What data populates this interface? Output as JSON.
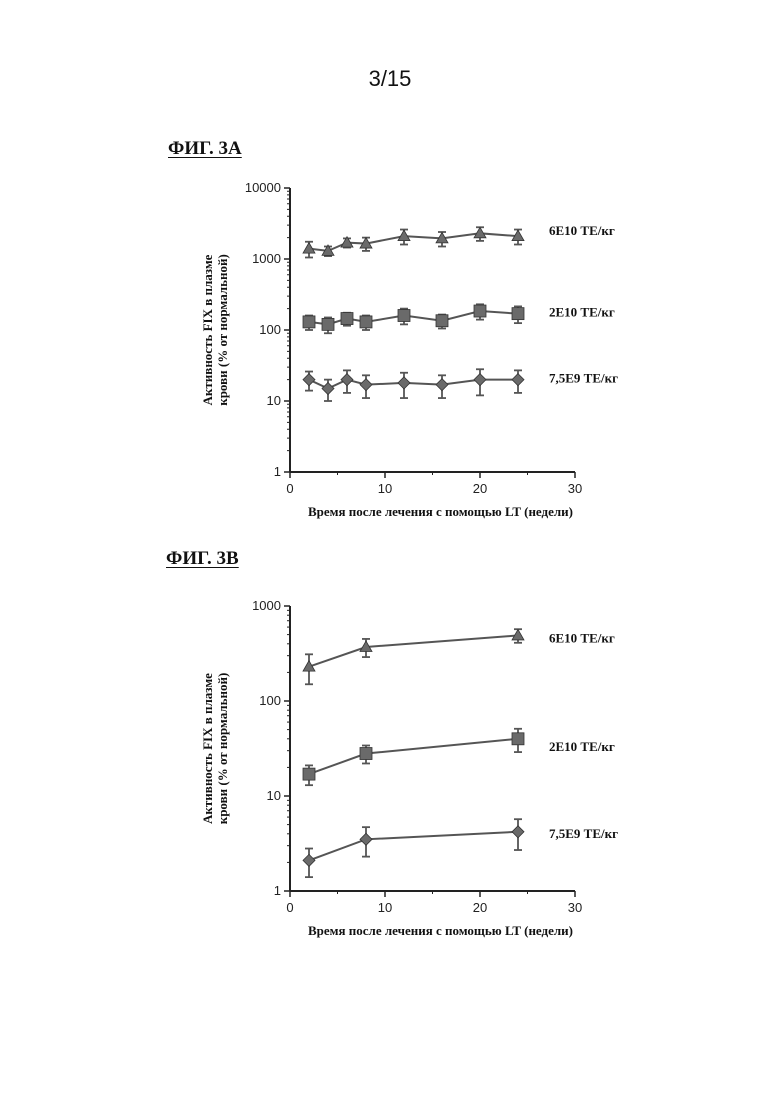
{
  "page": {
    "number": "3/15"
  },
  "chart_data": [
    {
      "type": "line",
      "title": "ФИГ. 3А",
      "xlabel": "Время после лечения с помощью LT (недели)",
      "ylabel": [
        "Активность FIX в плазме",
        "крови (% от нормальной)"
      ],
      "yscale": "log",
      "xlim": [
        0,
        30
      ],
      "ylim": [
        1,
        10000
      ],
      "xticks": [
        0,
        10,
        20,
        30
      ],
      "yticks": [
        1,
        10,
        100,
        1000,
        10000
      ],
      "legend": "right of series lines",
      "grid": false,
      "series": [
        {
          "name": "6E10 ТЕ/кг",
          "marker": "triangle",
          "x": [
            2,
            4,
            6,
            8,
            12,
            16,
            20,
            24
          ],
          "y": [
            1400,
            1300,
            1700,
            1650,
            2100,
            1950,
            2300,
            2100
          ],
          "err": [
            350,
            200,
            250,
            350,
            500,
            450,
            500,
            500
          ]
        },
        {
          "name": "2E10 ТЕ/кг",
          "marker": "square",
          "x": [
            2,
            4,
            6,
            8,
            12,
            16,
            20,
            24
          ],
          "y": [
            130,
            120,
            145,
            130,
            160,
            135,
            185,
            170
          ],
          "err": [
            30,
            30,
            30,
            30,
            40,
            30,
            45,
            45
          ]
        },
        {
          "name": "7,5E9 ТЕ/кг",
          "marker": "diamond",
          "x": [
            2,
            4,
            6,
            8,
            12,
            16,
            20,
            24
          ],
          "y": [
            20,
            15,
            20,
            17,
            18,
            17,
            20,
            20
          ],
          "err": [
            6,
            5,
            7,
            6,
            7,
            6,
            8,
            7
          ]
        }
      ]
    },
    {
      "type": "line",
      "title": "ФИГ. 3В",
      "xlabel": "Время после лечения с помощью LT (недели)",
      "ylabel": [
        "Активность FIX в плазме",
        "крови (% от нормальной)"
      ],
      "yscale": "log",
      "xlim": [
        0,
        30
      ],
      "ylim": [
        1,
        1000
      ],
      "xticks": [
        0,
        10,
        20,
        30
      ],
      "yticks": [
        1,
        10,
        100,
        1000
      ],
      "legend": "right of series lines",
      "grid": false,
      "series": [
        {
          "name": "6E10 ТЕ/кг",
          "marker": "triangle",
          "x": [
            2,
            8,
            24
          ],
          "y": [
            230,
            370,
            490
          ],
          "err": [
            80,
            80,
            80
          ]
        },
        {
          "name": "2E10 ТЕ/кг",
          "marker": "square",
          "x": [
            2,
            8,
            24
          ],
          "y": [
            17,
            28,
            40
          ],
          "err": [
            4,
            6,
            11
          ]
        },
        {
          "name": "7,5E9 ТЕ/кг",
          "marker": "diamond",
          "x": [
            2,
            8,
            24
          ],
          "y": [
            2.1,
            3.5,
            4.2
          ],
          "err": [
            0.7,
            1.2,
            1.5
          ]
        }
      ]
    }
  ]
}
